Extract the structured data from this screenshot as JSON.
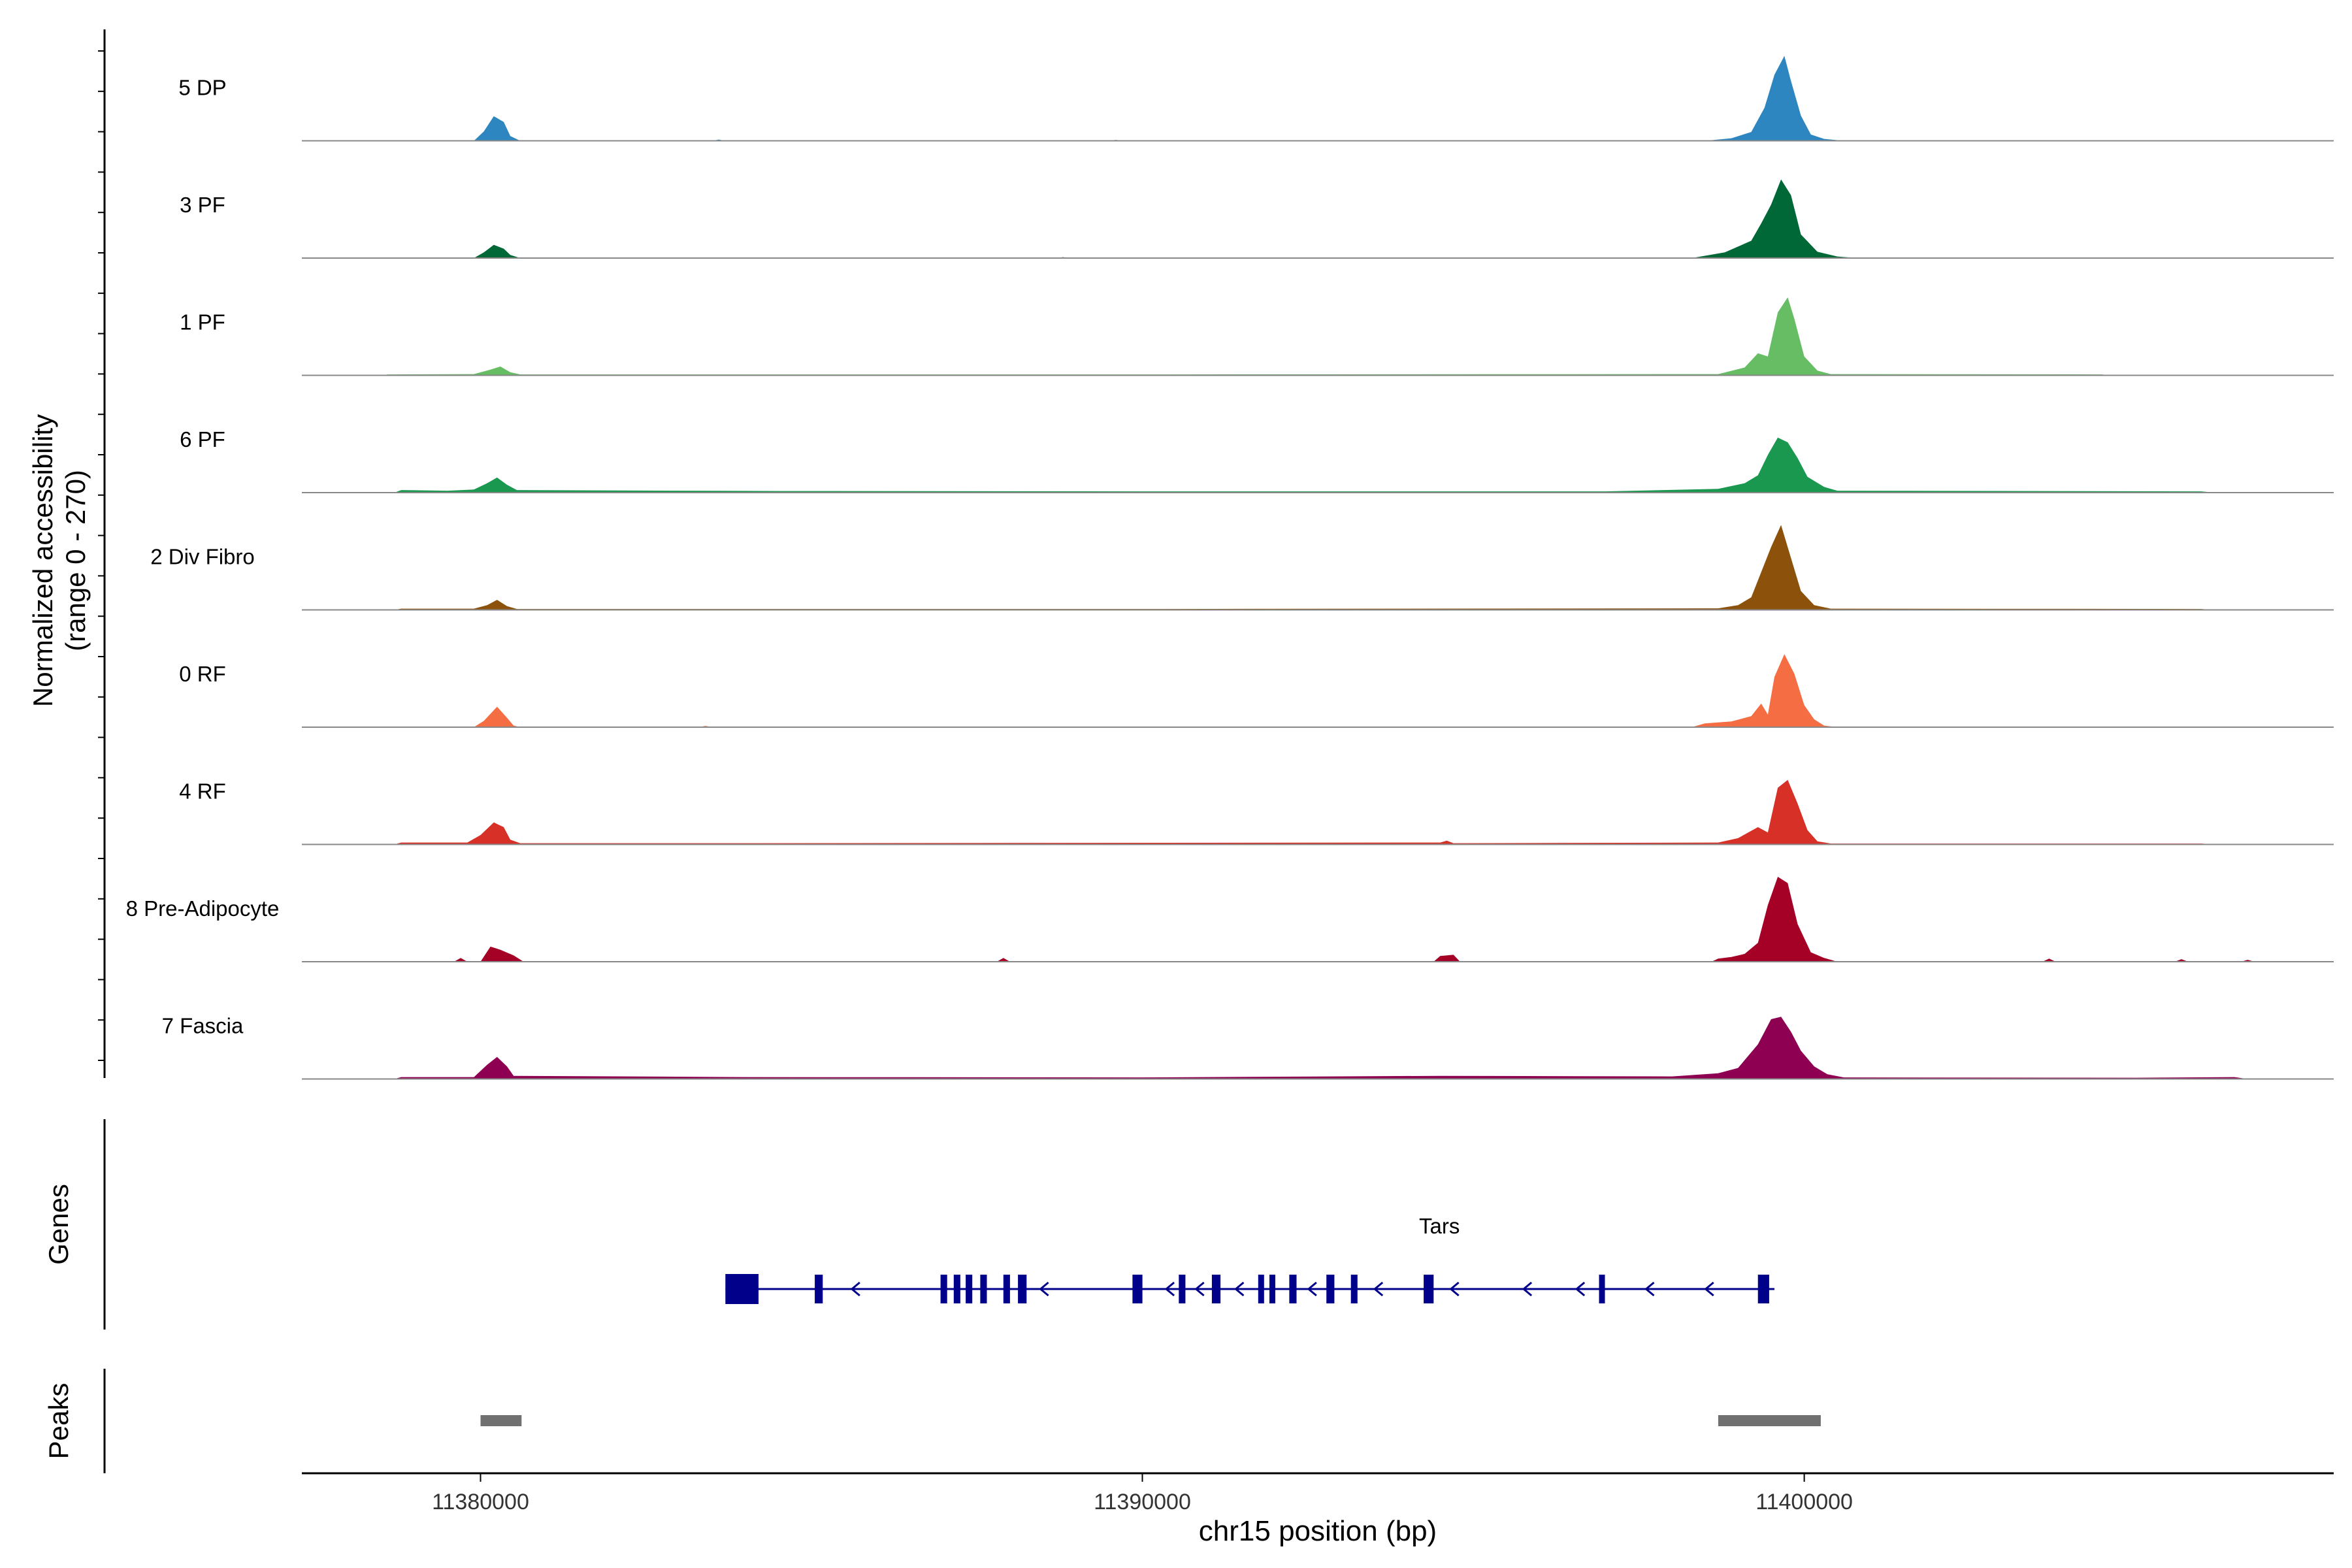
{
  "chart_data": {
    "type": "area",
    "title": "",
    "xlabel": "chr15 position (bp)",
    "ylabel": "Normalized accessibility",
    "ylabel_range": "(range 0 - 270)",
    "xlim": [
      11377300,
      11408000
    ],
    "ylim": [
      0,
      270
    ],
    "x_ticks": [
      11380000,
      11390000,
      11400000
    ],
    "x_tick_labels": [
      "11380000",
      "11390000",
      "11400000"
    ],
    "grid": false,
    "tracks": [
      {
        "name": "5 DP",
        "color": "#2E86C1",
        "points": [
          [
            11377300,
            0
          ],
          [
            11379900,
            0
          ],
          [
            11380050,
            30
          ],
          [
            11380200,
            78
          ],
          [
            11380350,
            60
          ],
          [
            11380450,
            15
          ],
          [
            11380600,
            0
          ],
          [
            11383500,
            0
          ],
          [
            11383600,
            4
          ],
          [
            11383700,
            0
          ],
          [
            11389500,
            0
          ],
          [
            11389600,
            3
          ],
          [
            11389700,
            0
          ],
          [
            11398500,
            0
          ],
          [
            11398900,
            8
          ],
          [
            11399200,
            28
          ],
          [
            11399400,
            105
          ],
          [
            11399550,
            210
          ],
          [
            11399700,
            270
          ],
          [
            11399800,
            190
          ],
          [
            11399950,
            80
          ],
          [
            11400100,
            20
          ],
          [
            11400300,
            6
          ],
          [
            11400600,
            0
          ],
          [
            11408000,
            0
          ]
        ]
      },
      {
        "name": "3 PF",
        "color": "#006837",
        "points": [
          [
            11377300,
            0
          ],
          [
            11379900,
            0
          ],
          [
            11380050,
            18
          ],
          [
            11380200,
            42
          ],
          [
            11380350,
            30
          ],
          [
            11380450,
            10
          ],
          [
            11380600,
            0
          ],
          [
            11388700,
            0
          ],
          [
            11388800,
            3
          ],
          [
            11388900,
            0
          ],
          [
            11398300,
            0
          ],
          [
            11398800,
            18
          ],
          [
            11399200,
            55
          ],
          [
            11399350,
            110
          ],
          [
            11399500,
            170
          ],
          [
            11399650,
            250
          ],
          [
            11399800,
            200
          ],
          [
            11399950,
            75
          ],
          [
            11400200,
            20
          ],
          [
            11400500,
            5
          ],
          [
            11400800,
            0
          ],
          [
            11408000,
            0
          ]
        ]
      },
      {
        "name": "1 PF",
        "color": "#66BD63",
        "points": [
          [
            11377300,
            0
          ],
          [
            11378500,
            0
          ],
          [
            11378600,
            3
          ],
          [
            11379900,
            4
          ],
          [
            11380150,
            18
          ],
          [
            11380300,
            28
          ],
          [
            11380450,
            10
          ],
          [
            11380600,
            3
          ],
          [
            11384000,
            3
          ],
          [
            11390000,
            3
          ],
          [
            11398700,
            4
          ],
          [
            11399100,
            25
          ],
          [
            11399300,
            70
          ],
          [
            11399450,
            60
          ],
          [
            11399600,
            200
          ],
          [
            11399750,
            248
          ],
          [
            11399850,
            180
          ],
          [
            11400000,
            60
          ],
          [
            11400200,
            15
          ],
          [
            11400400,
            4
          ],
          [
            11404500,
            3
          ],
          [
            11404600,
            0
          ],
          [
            11408000,
            0
          ]
        ]
      },
      {
        "name": "6 PF",
        "color": "#1A9850",
        "points": [
          [
            11377300,
            0
          ],
          [
            11378700,
            0
          ],
          [
            11378800,
            8
          ],
          [
            11379500,
            6
          ],
          [
            11379900,
            10
          ],
          [
            11380100,
            30
          ],
          [
            11380250,
            48
          ],
          [
            11380400,
            25
          ],
          [
            11380550,
            8
          ],
          [
            11384500,
            5
          ],
          [
            11390000,
            4
          ],
          [
            11397000,
            4
          ],
          [
            11398700,
            12
          ],
          [
            11399100,
            30
          ],
          [
            11399300,
            55
          ],
          [
            11399450,
            120
          ],
          [
            11399600,
            175
          ],
          [
            11399750,
            160
          ],
          [
            11399900,
            110
          ],
          [
            11400050,
            50
          ],
          [
            11400300,
            18
          ],
          [
            11400500,
            6
          ],
          [
            11406000,
            4
          ],
          [
            11406200,
            0
          ],
          [
            11408000,
            0
          ]
        ]
      },
      {
        "name": "2 Div Fibro",
        "color": "#8C510A",
        "points": [
          [
            11377300,
            0
          ],
          [
            11378700,
            0
          ],
          [
            11378800,
            4
          ],
          [
            11379900,
            4
          ],
          [
            11380100,
            15
          ],
          [
            11380250,
            32
          ],
          [
            11380400,
            12
          ],
          [
            11380550,
            3
          ],
          [
            11390000,
            3
          ],
          [
            11398700,
            5
          ],
          [
            11399000,
            15
          ],
          [
            11399200,
            40
          ],
          [
            11399350,
            120
          ],
          [
            11399500,
            200
          ],
          [
            11399650,
            270
          ],
          [
            11399800,
            165
          ],
          [
            11399950,
            60
          ],
          [
            11400150,
            15
          ],
          [
            11400400,
            4
          ],
          [
            11406000,
            3
          ],
          [
            11406200,
            0
          ],
          [
            11408000,
            0
          ]
        ]
      },
      {
        "name": "0 RF",
        "color": "#F46D43",
        "points": [
          [
            11377300,
            0
          ],
          [
            11379900,
            0
          ],
          [
            11380050,
            20
          ],
          [
            11380250,
            65
          ],
          [
            11380400,
            30
          ],
          [
            11380500,
            5
          ],
          [
            11380600,
            0
          ],
          [
            11383300,
            0
          ],
          [
            11383400,
            4
          ],
          [
            11383500,
            0
          ],
          [
            11398300,
            0
          ],
          [
            11398500,
            12
          ],
          [
            11398900,
            18
          ],
          [
            11399200,
            35
          ],
          [
            11399350,
            75
          ],
          [
            11399450,
            40
          ],
          [
            11399550,
            160
          ],
          [
            11399700,
            232
          ],
          [
            11399850,
            170
          ],
          [
            11400000,
            70
          ],
          [
            11400150,
            25
          ],
          [
            11400300,
            5
          ],
          [
            11400500,
            0
          ],
          [
            11408000,
            0
          ]
        ]
      },
      {
        "name": "4 RF",
        "color": "#D73027",
        "points": [
          [
            11377300,
            0
          ],
          [
            11378700,
            0
          ],
          [
            11378800,
            6
          ],
          [
            11379800,
            6
          ],
          [
            11380000,
            30
          ],
          [
            11380200,
            70
          ],
          [
            11380350,
            55
          ],
          [
            11380450,
            15
          ],
          [
            11380600,
            4
          ],
          [
            11384000,
            4
          ],
          [
            11394500,
            6
          ],
          [
            11394600,
            12
          ],
          [
            11394700,
            4
          ],
          [
            11398700,
            6
          ],
          [
            11399000,
            20
          ],
          [
            11399300,
            55
          ],
          [
            11399450,
            38
          ],
          [
            11399600,
            180
          ],
          [
            11399750,
            205
          ],
          [
            11399900,
            130
          ],
          [
            11400050,
            45
          ],
          [
            11400200,
            10
          ],
          [
            11400400,
            3
          ],
          [
            11406000,
            3
          ],
          [
            11406200,
            0
          ],
          [
            11408000,
            0
          ]
        ]
      },
      {
        "name": "8 Pre-Adipocyte",
        "color": "#A50026",
        "points": [
          [
            11377300,
            0
          ],
          [
            11379600,
            0
          ],
          [
            11379700,
            12
          ],
          [
            11379800,
            0
          ],
          [
            11380000,
            0
          ],
          [
            11380150,
            48
          ],
          [
            11380300,
            38
          ],
          [
            11380500,
            20
          ],
          [
            11380650,
            0
          ],
          [
            11387800,
            0
          ],
          [
            11387900,
            12
          ],
          [
            11388000,
            0
          ],
          [
            11394400,
            0
          ],
          [
            11394500,
            18
          ],
          [
            11394700,
            22
          ],
          [
            11394800,
            0
          ],
          [
            11398600,
            0
          ],
          [
            11398700,
            10
          ],
          [
            11398900,
            15
          ],
          [
            11399100,
            25
          ],
          [
            11399300,
            60
          ],
          [
            11399450,
            180
          ],
          [
            11399600,
            270
          ],
          [
            11399750,
            250
          ],
          [
            11399900,
            120
          ],
          [
            11400100,
            30
          ],
          [
            11400300,
            12
          ],
          [
            11400500,
            0
          ],
          [
            11403600,
            0
          ],
          [
            11403700,
            10
          ],
          [
            11403800,
            0
          ],
          [
            11405600,
            0
          ],
          [
            11405700,
            8
          ],
          [
            11405800,
            0
          ],
          [
            11406600,
            0
          ],
          [
            11406700,
            6
          ],
          [
            11406800,
            0
          ],
          [
            11408000,
            0
          ]
        ]
      },
      {
        "name": "7 Fascia",
        "color": "#8E0152",
        "points": [
          [
            11377300,
            0
          ],
          [
            11378700,
            0
          ],
          [
            11378800,
            6
          ],
          [
            11379900,
            6
          ],
          [
            11380100,
            45
          ],
          [
            11380250,
            70
          ],
          [
            11380400,
            40
          ],
          [
            11380500,
            10
          ],
          [
            11384000,
            6
          ],
          [
            11390000,
            5
          ],
          [
            11394500,
            10
          ],
          [
            11398000,
            8
          ],
          [
            11398700,
            18
          ],
          [
            11399000,
            35
          ],
          [
            11399300,
            110
          ],
          [
            11399500,
            190
          ],
          [
            11399650,
            198
          ],
          [
            11399800,
            150
          ],
          [
            11399950,
            90
          ],
          [
            11400150,
            40
          ],
          [
            11400350,
            15
          ],
          [
            11400600,
            5
          ],
          [
            11405000,
            4
          ],
          [
            11406500,
            6
          ],
          [
            11406700,
            0
          ],
          [
            11408000,
            0
          ]
        ]
      }
    ],
    "genes_label": "Genes",
    "gene": {
      "name": "Tars",
      "start": 11383700,
      "end": 11399550,
      "strand": "-",
      "color": "#00008B",
      "exons": [
        [
          11383700,
          11384200
        ],
        [
          11385050,
          11385170
        ],
        [
          11386950,
          11387050
        ],
        [
          11387150,
          11387250
        ],
        [
          11387330,
          11387430
        ],
        [
          11387550,
          11387650
        ],
        [
          11387900,
          11388000
        ],
        [
          11388120,
          11388250
        ],
        [
          11389850,
          11390000
        ],
        [
          11390550,
          11390650
        ],
        [
          11391050,
          11391180
        ],
        [
          11391750,
          11391820
        ],
        [
          11391920,
          11392000
        ],
        [
          11392220,
          11392330
        ],
        [
          11392780,
          11392900
        ],
        [
          11393150,
          11393250
        ],
        [
          11394250,
          11394400
        ],
        [
          11396900,
          11396980
        ],
        [
          11399300,
          11399470
        ]
      ],
      "arrows": [
        11385650,
        11388500,
        11390400,
        11390850,
        11391450,
        11392550,
        11393550,
        11394700,
        11395800,
        11396600,
        11397650,
        11398550
      ]
    },
    "peaks_label": "Peaks",
    "peaks": [
      [
        11380000,
        11380620
      ],
      [
        11398700,
        11400250
      ]
    ],
    "peak_color": "#707070"
  }
}
